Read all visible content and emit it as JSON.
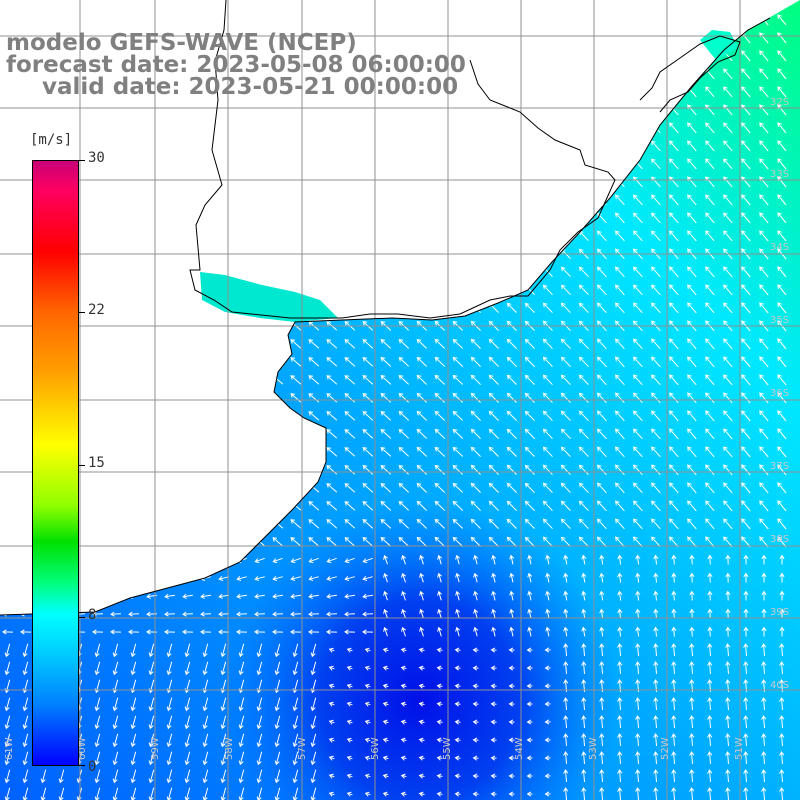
{
  "title": {
    "line1": "modelo GEFS-WAVE (NCEP)",
    "line2": "forecast date: 2023-05-08 06:00:00",
    "line3": "valid date: 2023-05-21 00:00:00"
  },
  "colorbar": {
    "unit": "[m/s]",
    "ticks": [
      "30",
      "22",
      "15",
      "8",
      "0"
    ],
    "colors": [
      "#c80078",
      "#ff0000",
      "#ff8000",
      "#ffff00",
      "#00e000",
      "#00ffff",
      "#0080ff",
      "#0000ff"
    ]
  },
  "map": {
    "lon_labels": [
      "61W",
      "60W",
      "59W",
      "58W",
      "57W",
      "56W",
      "55W",
      "54W",
      "53W",
      "52W",
      "51W"
    ],
    "lat_labels": [
      "32S",
      "33S",
      "34S",
      "35S",
      "36S",
      "37S",
      "38S",
      "39S",
      "40S"
    ],
    "ocean_colors": {
      "low": "#0010e0",
      "mid": "#0070ff",
      "high": "#00ffff",
      "coast_ne": "#00ff80"
    }
  }
}
